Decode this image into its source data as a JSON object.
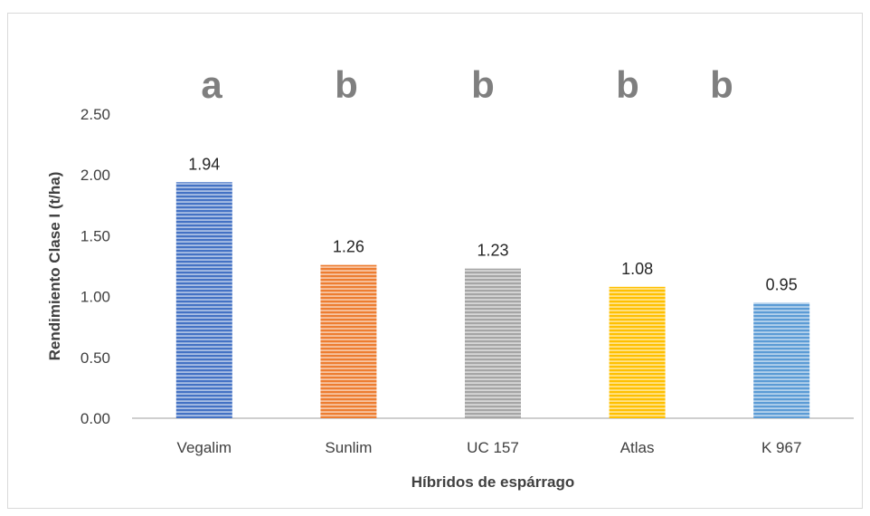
{
  "chart_data": {
    "type": "bar",
    "categories": [
      "Vegalim",
      "Sunlim",
      "UC 157",
      "Atlas",
      "K 967"
    ],
    "values": [
      1.94,
      1.26,
      1.23,
      1.08,
      0.95
    ],
    "data_labels": [
      "1.94",
      "1.26",
      "1.23",
      "1.08",
      "0.95"
    ],
    "significance_letters": [
      "a",
      "b",
      "b",
      "b",
      "b"
    ],
    "bar_colors": [
      "#4472c4",
      "#ed7d31",
      "#a5a5a5",
      "#ffc000",
      "#5b9bd5"
    ],
    "xlabel": "Híbridos de espárrago",
    "ylabel": "Rendimiento Clase I (t/ha)",
    "ylim": [
      0,
      2.5
    ],
    "yticks": [
      "0.00",
      "0.50",
      "1.00",
      "1.50",
      "2.00",
      "2.50"
    ],
    "grid": false,
    "bar_pattern": "horizontal-stripes"
  }
}
